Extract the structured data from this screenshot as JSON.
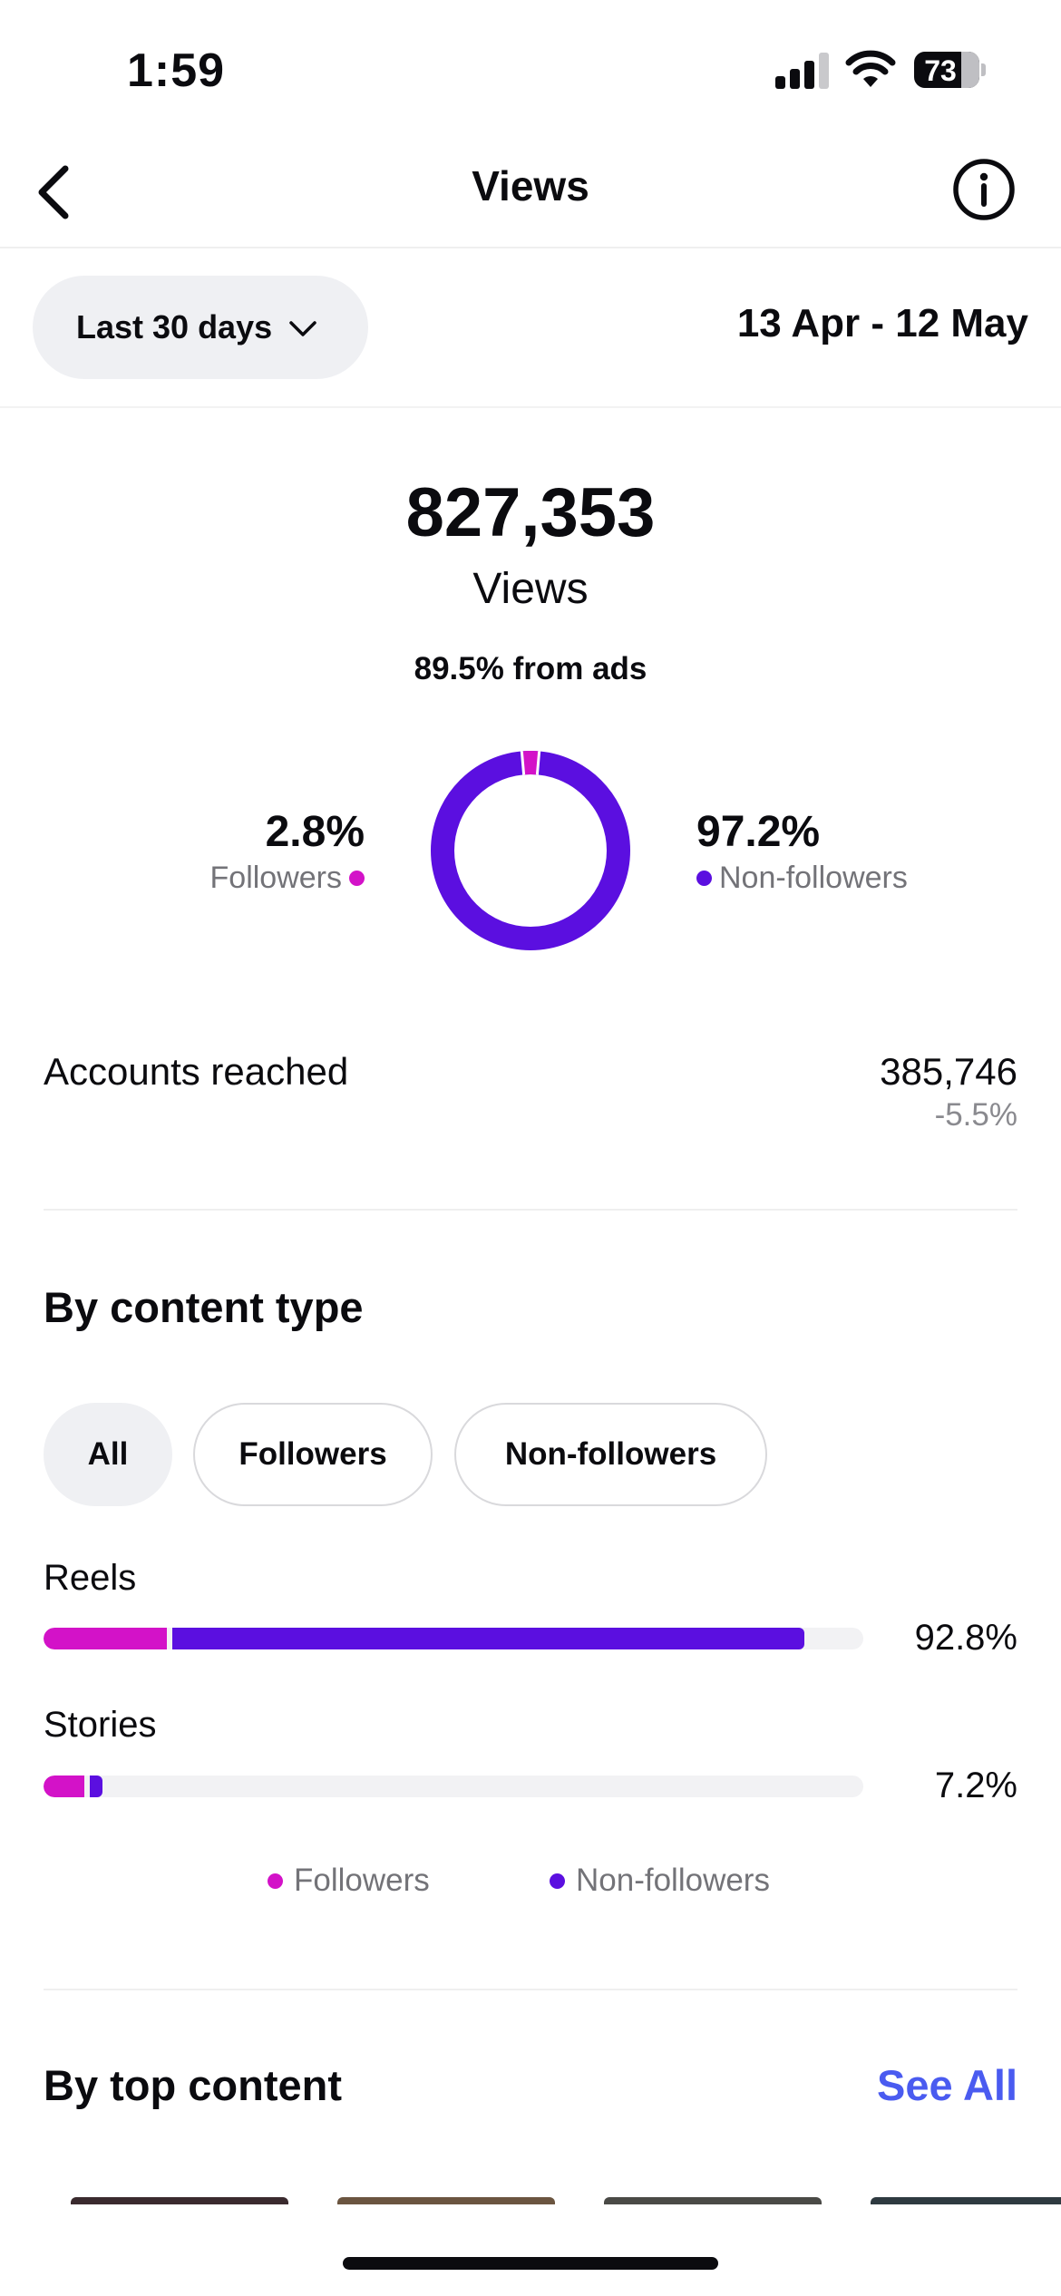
{
  "status_bar": {
    "time": "1:59",
    "battery": "73"
  },
  "nav": {
    "title": "Views",
    "back_icon": "chevron-left-icon",
    "info_icon": "info-icon"
  },
  "filter": {
    "range_label": "Last 30 days",
    "date_range": "13 Apr - 12 May"
  },
  "summary": {
    "total_value": "827,353",
    "total_label": "Views",
    "ads_note": "89.5% from ads",
    "followers": {
      "pct": "2.8%",
      "label": "Followers",
      "share": 0.028
    },
    "non_followers": {
      "pct": "97.2%",
      "label": "Non-followers",
      "share": 0.972
    }
  },
  "accounts_reached": {
    "label": "Accounts reached",
    "value": "385,746",
    "change": "-5.5%"
  },
  "content_type": {
    "title": "By content type",
    "chips": [
      {
        "label": "All",
        "selected": true
      },
      {
        "label": "Followers",
        "selected": false
      },
      {
        "label": "Non-followers",
        "selected": false
      }
    ],
    "rows": [
      {
        "label": "Reels",
        "pct": "92.8%",
        "followers_fraction": 0.15,
        "non_followers_fraction": 0.778
      },
      {
        "label": "Stories",
        "pct": "7.2%",
        "followers_fraction": 0.05,
        "non_followers_fraction": 0.022
      }
    ],
    "legend": {
      "followers": "Followers",
      "non_followers": "Non-followers"
    }
  },
  "top_content": {
    "title": "By top content",
    "see_all": "See All"
  },
  "colors": {
    "followers": "#d312c8",
    "non_followers": "#5b0fe0",
    "link": "#4a5bf0"
  }
}
